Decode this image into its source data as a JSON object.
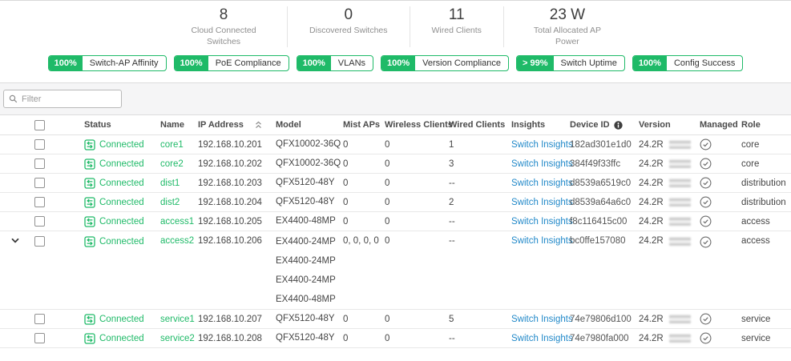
{
  "colors": {
    "green": "#1fba68",
    "blue": "#2289c9"
  },
  "stats": [
    {
      "value": "8",
      "label": "Cloud Connected Switches"
    },
    {
      "value": "0",
      "label": "Discovered Switches"
    },
    {
      "value": "11",
      "label": "Wired Clients"
    },
    {
      "value": "23 W",
      "label": "Total Allocated AP Power"
    }
  ],
  "badges": [
    {
      "percent": "100%",
      "label": "Switch-AP Affinity"
    },
    {
      "percent": "100%",
      "label": "PoE Compliance"
    },
    {
      "percent": "100%",
      "label": "VLANs"
    },
    {
      "percent": "100%",
      "label": "Version Compliance"
    },
    {
      "percent": "> 99%",
      "label": "Switch Uptime"
    },
    {
      "percent": "100%",
      "label": "Config Success"
    }
  ],
  "filter": {
    "placeholder": "Filter"
  },
  "table": {
    "columns": [
      "Status",
      "Name",
      "IP Address",
      "Model",
      "Mist APs",
      "Wireless Clients",
      "Wired Clients",
      "Insights",
      "Device ID",
      "Version",
      "Managed",
      "Role"
    ],
    "rows": [
      {
        "expanded": false,
        "status": "Connected",
        "name": "core1",
        "ip": "192.168.10.201",
        "models": [
          "QFX10002-36Q"
        ],
        "mist_aps": "0",
        "wireless_clients": "0",
        "wired_clients": "1",
        "insights": "Switch Insights",
        "device_id": "182ad301e1d0",
        "version_prefix": "24.2R",
        "version_redacted": true,
        "managed": true,
        "role": "core"
      },
      {
        "expanded": false,
        "status": "Connected",
        "name": "core2",
        "ip": "192.168.10.202",
        "models": [
          "QFX10002-36Q"
        ],
        "mist_aps": "0",
        "wireless_clients": "0",
        "wired_clients": "3",
        "insights": "Switch Insights",
        "device_id": "384f49f33ffc",
        "version_prefix": "24.2R",
        "version_redacted": true,
        "managed": true,
        "role": "core"
      },
      {
        "expanded": false,
        "status": "Connected",
        "name": "dist1",
        "ip": "192.168.10.203",
        "models": [
          "QFX5120-48Y"
        ],
        "mist_aps": "0",
        "wireless_clients": "0",
        "wired_clients": "--",
        "insights": "Switch Insights",
        "device_id": "d8539a6519c0",
        "version_prefix": "24.2R",
        "version_redacted": true,
        "managed": true,
        "role": "distribution"
      },
      {
        "expanded": false,
        "status": "Connected",
        "name": "dist2",
        "ip": "192.168.10.204",
        "models": [
          "QFX5120-48Y"
        ],
        "mist_aps": "0",
        "wireless_clients": "0",
        "wired_clients": "2",
        "insights": "Switch Insights",
        "device_id": "d8539a64a6c0",
        "version_prefix": "24.2R",
        "version_redacted": true,
        "managed": true,
        "role": "distribution"
      },
      {
        "expanded": false,
        "status": "Connected",
        "name": "access1",
        "ip": "192.168.10.205",
        "models": [
          "EX4400-48MP"
        ],
        "mist_aps": "0",
        "wireless_clients": "0",
        "wired_clients": "--",
        "insights": "Switch Insights",
        "device_id": "f8c116415c00",
        "version_prefix": "24.2R",
        "version_redacted": true,
        "managed": true,
        "role": "access"
      },
      {
        "expanded": true,
        "status": "Connected",
        "name": "access2",
        "ip": "192.168.10.206",
        "models": [
          "EX4400-24MP",
          "EX4400-24MP",
          "EX4400-24MP",
          "EX4400-48MP"
        ],
        "mist_aps": "0, 0, 0, 0",
        "wireless_clients": "0",
        "wired_clients": "--",
        "insights": "Switch Insights",
        "device_id": "bc0ffe157080",
        "version_prefix": "24.2R",
        "version_redacted": true,
        "managed": true,
        "role": "access"
      },
      {
        "expanded": false,
        "status": "Connected",
        "name": "service1",
        "ip": "192.168.10.207",
        "models": [
          "QFX5120-48Y"
        ],
        "mist_aps": "0",
        "wireless_clients": "0",
        "wired_clients": "5",
        "insights": "Switch Insights",
        "device_id": "74e79806d100",
        "version_prefix": "24.2R",
        "version_redacted": true,
        "managed": true,
        "role": "service"
      },
      {
        "expanded": false,
        "status": "Connected",
        "name": "service2",
        "ip": "192.168.10.208",
        "models": [
          "QFX5120-48Y"
        ],
        "mist_aps": "0",
        "wireless_clients": "0",
        "wired_clients": "--",
        "insights": "Switch Insights",
        "device_id": "74e7980fa000",
        "version_prefix": "24.2R",
        "version_redacted": true,
        "managed": true,
        "role": "service"
      }
    ]
  }
}
